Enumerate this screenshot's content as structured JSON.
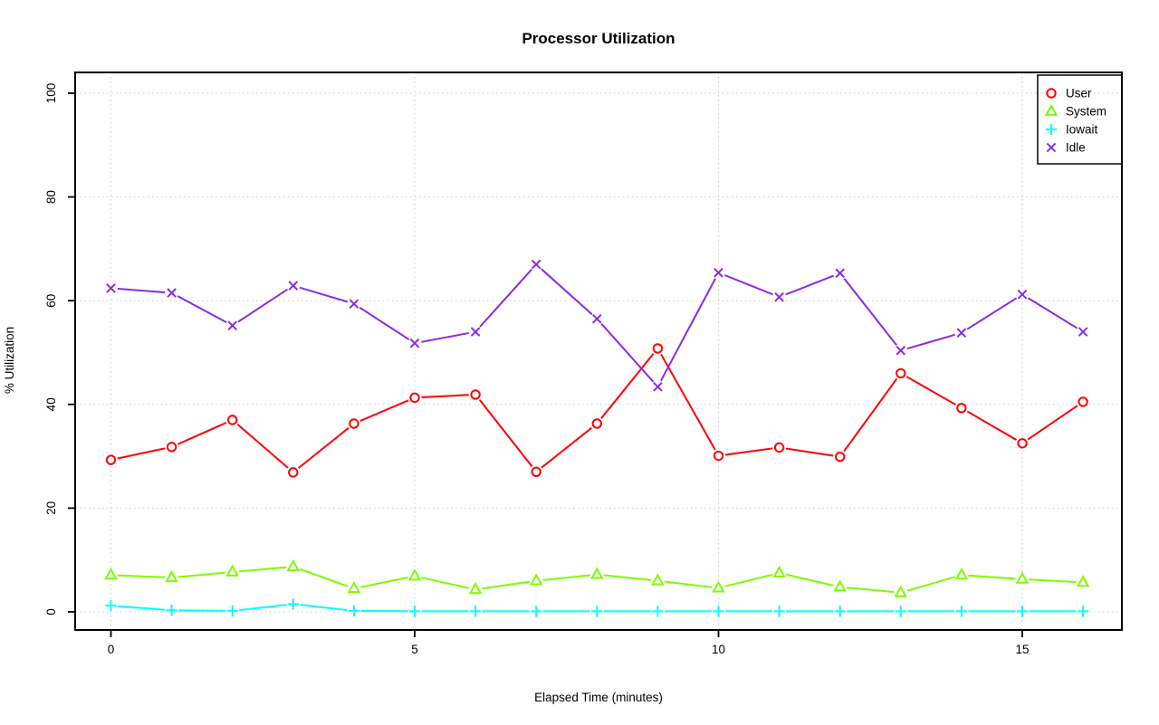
{
  "chart_data": {
    "type": "line",
    "title": "Processor Utilization",
    "xlabel": "Elapsed Time (minutes)",
    "ylabel": "% Utilization",
    "x": [
      0,
      1,
      2,
      3,
      4,
      5,
      6,
      7,
      8,
      9,
      10,
      11,
      12,
      13,
      14,
      15,
      16
    ],
    "x_ticks": [
      "0",
      "5",
      "10",
      "15"
    ],
    "y_ticks": [
      "0",
      "20",
      "40",
      "60",
      "80",
      "100"
    ],
    "xlim": [
      -0.6,
      16.7
    ],
    "ylim": [
      -3,
      104
    ],
    "grid": "dotted",
    "legend_position": "top-right",
    "series": [
      {
        "name": "User",
        "marker": "circle-icon",
        "color": "#ff0000",
        "values": [
          29.3,
          31.8,
          37.0,
          26.9,
          36.3,
          41.3,
          41.9,
          27.0,
          36.3,
          50.8,
          30.1,
          31.7,
          29.9,
          46.0,
          39.3,
          32.5,
          40.5
        ]
      },
      {
        "name": "System",
        "marker": "triangle-icon",
        "color": "#7cfc00",
        "values": [
          7.1,
          6.6,
          7.7,
          8.7,
          4.5,
          6.9,
          4.3,
          6.0,
          7.2,
          6.0,
          4.6,
          7.5,
          4.8,
          3.7,
          7.1,
          6.3,
          5.7
        ]
      },
      {
        "name": "Iowait",
        "marker": "plus-icon",
        "color": "#00ffff",
        "values": [
          1.2,
          0.3,
          0.2,
          1.5,
          0.2,
          0.1,
          0.1,
          0.1,
          0.1,
          0.1,
          0.1,
          0.1,
          0.1,
          0.1,
          0.1,
          0.1,
          0.1
        ]
      },
      {
        "name": "Idle",
        "marker": "x-icon",
        "color": "#8a2be2",
        "values": [
          62.4,
          61.5,
          55.2,
          62.9,
          59.4,
          51.8,
          54.0,
          67.0,
          56.5,
          43.4,
          65.4,
          60.7,
          65.3,
          50.4,
          53.8,
          61.2,
          54.0
        ]
      }
    ]
  }
}
